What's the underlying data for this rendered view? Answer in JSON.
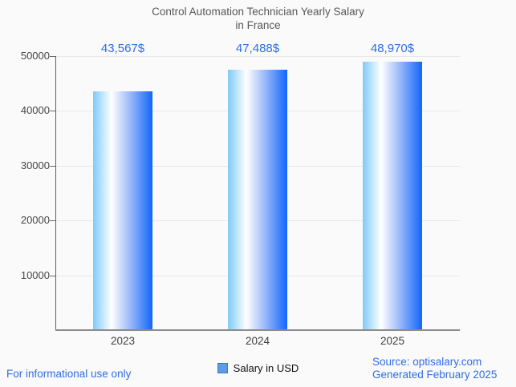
{
  "page": {
    "background": "#fafafa"
  },
  "title": {
    "line1": "Control Automation Technician Yearly Salary",
    "line2": "in France"
  },
  "chart_data": {
    "type": "bar",
    "title": "Control Automation Technician Yearly Salary in France",
    "categories": [
      "2023",
      "2024",
      "2025"
    ],
    "series": [
      {
        "name": "Salary in USD",
        "values": [
          43567,
          47488,
          48970
        ],
        "value_labels": [
          "43,567$",
          "47,488$",
          "48,970$"
        ]
      }
    ],
    "xlabel": "",
    "ylabel": "",
    "ylim": [
      0,
      50000
    ],
    "yticks": [
      10000,
      20000,
      30000,
      40000,
      50000
    ],
    "ytick_labels": [
      "10000",
      "20000",
      "30000",
      "40000",
      "50000"
    ],
    "grid": true,
    "legend_position": "bottom",
    "bar_gradient": [
      "#7ecbf8",
      "#ffffff",
      "#1166fb"
    ]
  },
  "legend": {
    "label": "Salary in USD",
    "swatch_fill": "#5c9ce6",
    "swatch_border": "#3b76cf"
  },
  "footer": {
    "disclaimer": "For informational use only",
    "source": "Source: optisalary.com",
    "generated": "Generated February 2025"
  },
  "colors": {
    "title_text": "#58585a",
    "value_label": "#2e6de4",
    "footer_text": "#2e6de4",
    "axis": "#5f5f5f",
    "gridline": "#e8e8e8"
  }
}
